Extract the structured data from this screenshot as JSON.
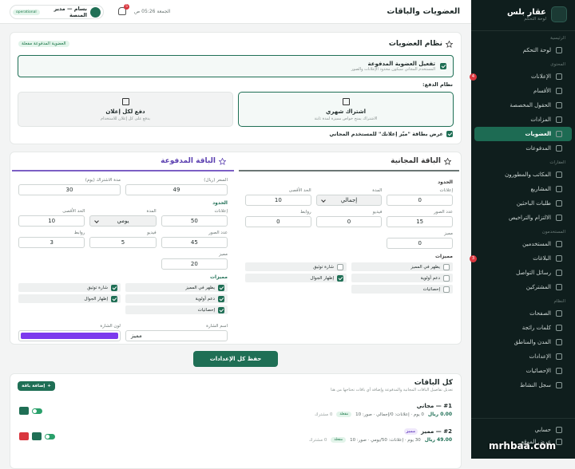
{
  "header": {
    "title": "العضويات والباقات",
    "user": "بسام — مدير المنصة",
    "status": "operational",
    "notifications": "5",
    "datetime": "الجمعة 05:26 ص"
  },
  "sidebar": {
    "logo_title": "عقار بلس",
    "logo_subtitle": "لوحة التحكم",
    "sections": [
      {
        "title": "الرئيسية",
        "items": [
          {
            "label": "لوحة التحكم"
          }
        ]
      },
      {
        "title": "المحتوى",
        "items": [
          {
            "label": "الإعلانات",
            "badge": "4"
          },
          {
            "label": "الأقسام"
          },
          {
            "label": "الحقول المخصصة"
          },
          {
            "label": "المزادات"
          },
          {
            "label": "العضويات",
            "active": true
          },
          {
            "label": "المدفوعات"
          }
        ]
      },
      {
        "title": "العقارات",
        "items": [
          {
            "label": "المكاتب والمطورون"
          },
          {
            "label": "المشاريع"
          },
          {
            "label": "طلبات الباحثين"
          },
          {
            "label": "الالتزام والتراخيص"
          }
        ]
      },
      {
        "title": "المستخدمون",
        "items": [
          {
            "label": "المستخدمين"
          },
          {
            "label": "البلاغات",
            "badge": "3"
          },
          {
            "label": "رسائل التواصل"
          },
          {
            "label": "المشتركين"
          }
        ]
      },
      {
        "title": "النظام",
        "items": [
          {
            "label": "الصفحات"
          },
          {
            "label": "كلمات رائجة"
          },
          {
            "label": "المدن والمناطق"
          },
          {
            "label": "الإعدادات"
          },
          {
            "label": "الإحصائيات"
          },
          {
            "label": "سجل النشاط"
          }
        ]
      }
    ],
    "footer": [
      "حسابي",
      "عرض الموقع"
    ]
  },
  "membership": {
    "title": "نظام العضويات",
    "badge": "العضوية المدفوعة مفعلة",
    "enable_label": "تفعيل العضوية المدفوعة",
    "enable_hint": "المستخدم المجاني سيكون محدود الإعلانات والصور",
    "enabled": true,
    "payment_label": "نظام الدفع:",
    "payment_options": [
      {
        "title": "اشتراك شهري",
        "hint": "الاشتراك يمنح خواص مميزة لمدة ثابتة",
        "selected": true
      },
      {
        "title": "دفع لكل إعلان",
        "hint": "يدفع على كل إعلان للاستخدام",
        "selected": false
      }
    ],
    "promo_label": "عرض بطاقة \"ميّز إعلانك\" للمستخدم المجاني",
    "promo_checked": true
  },
  "free_plan": {
    "title": "الباقة المجانية",
    "limits_label": "الحدود",
    "fields": [
      {
        "label": "إعلانات",
        "value": 0
      },
      {
        "label": "المدة",
        "value": "إجمالي",
        "select": true
      },
      {
        "label": "الحد الأقصى",
        "value": 10
      },
      {
        "label": "عدد الصور",
        "value": 15
      },
      {
        "label": "فيديو",
        "value": 0
      },
      {
        "label": "روابط",
        "value": 0
      },
      {
        "label": "مميز",
        "value": 0
      }
    ],
    "features_label": "مميزات",
    "features": [
      {
        "label": "يظهر في المميز",
        "checked": false
      },
      {
        "label": "شارة توثيق",
        "checked": false
      },
      {
        "label": "دعم أولوية",
        "checked": false
      },
      {
        "label": "إظهار الجوال",
        "checked": true
      },
      {
        "label": "إحصائيات",
        "checked": false
      }
    ]
  },
  "paid_plan": {
    "title": "الباقة المدفوعة",
    "price": {
      "label": "السعر (ريال)",
      "value": 49
    },
    "duration": {
      "label": "مدة الاشتراك (يوم)",
      "value": 30
    },
    "limits_label": "الحدود",
    "fields": [
      {
        "label": "إعلانات",
        "value": 50
      },
      {
        "label": "المدة",
        "value": "يومي",
        "select": true
      },
      {
        "label": "الحد الأقصى",
        "value": 10
      },
      {
        "label": "عدد الصور",
        "value": 45
      },
      {
        "label": "فيديو",
        "value": 5
      },
      {
        "label": "روابط",
        "value": 3
      },
      {
        "label": "مميز",
        "value": 20
      }
    ],
    "features_label": "مميزات",
    "features": [
      {
        "label": "يظهر في المميز",
        "checked": true
      },
      {
        "label": "شارة توثيق",
        "checked": true
      },
      {
        "label": "دعم أولوية",
        "checked": true
      },
      {
        "label": "إظهار الجوال",
        "checked": true
      },
      {
        "label": "إحصائيات",
        "checked": true
      }
    ],
    "badge_name_label": "اسم الشارة",
    "badge_name": "مميز",
    "badge_color_label": "لون الشارة",
    "badge_color": "#7c3aed"
  },
  "save_button": "حفظ كل الإعدادات",
  "plans_list": {
    "title": "كل الباقات",
    "subtitle": "تعديل تفاصيل الباقات المجانية والمدفوعة وإضافة أي باقات تحتاجها من هنا",
    "add_button": "إضافة باقة",
    "items": [
      {
        "title": "#1 — مجاني",
        "price": "0.00 ريال",
        "details": "0 يوم · إعلانات: 0/إجمالي · صور: 10",
        "status": "مفعلة",
        "subscribers": "0 مشترك",
        "deletable": false
      },
      {
        "title": "#2 — مميز",
        "badge": "مميز",
        "price": "49.00 ريال",
        "details": "30 يوم · إعلانات: 50/يومي · صور: 10",
        "status": "مفعلة",
        "subscribers": "0 مشترك",
        "deletable": true
      }
    ]
  },
  "watermark": "mrhbaa.com"
}
